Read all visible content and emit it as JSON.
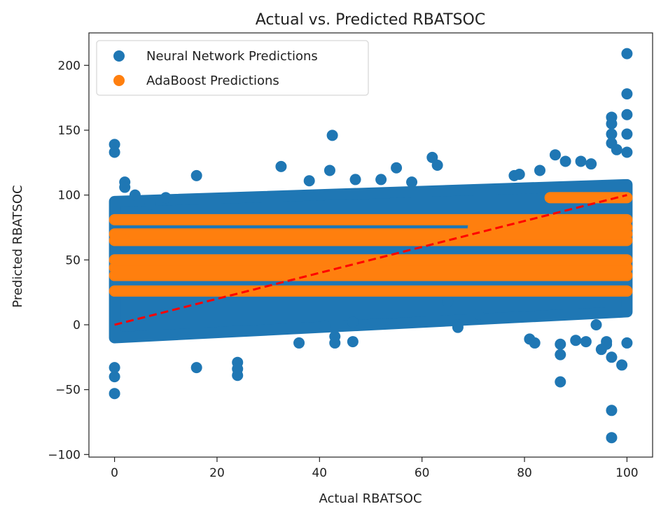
{
  "chart_data": {
    "type": "scatter",
    "title": "Actual vs. Predicted RBATSOC",
    "xlabel": "Actual RBATSOC",
    "ylabel": "Predicted RBATSOC",
    "xlim": [
      -5,
      105
    ],
    "ylim": [
      -102,
      225
    ],
    "xticks": [
      0,
      20,
      40,
      60,
      80,
      100
    ],
    "yticks": [
      -100,
      -50,
      0,
      50,
      100,
      150,
      200
    ],
    "legend_position": "top-left",
    "series": [
      {
        "name": "Neural Network Predictions",
        "color": "#1f77b4",
        "band": {
          "x": [
            0,
            100
          ],
          "y_low_at_x0": -10,
          "y_high_at_x0": 95,
          "y_low_at_x100": 10,
          "y_high_at_x100": 108
        },
        "outliers": [
          [
            0,
            139
          ],
          [
            0,
            133
          ],
          [
            0,
            -53
          ],
          [
            0,
            -40
          ],
          [
            0,
            -33
          ],
          [
            2,
            110
          ],
          [
            2,
            106
          ],
          [
            4,
            100
          ],
          [
            7,
            93
          ],
          [
            10,
            98
          ],
          [
            16,
            115
          ],
          [
            16,
            -33
          ],
          [
            24,
            -29
          ],
          [
            24,
            -34
          ],
          [
            24,
            -39
          ],
          [
            32.5,
            122
          ],
          [
            36,
            -14
          ],
          [
            38,
            111
          ],
          [
            41,
            -1
          ],
          [
            42,
            119
          ],
          [
            42.5,
            146
          ],
          [
            43,
            -9
          ],
          [
            43,
            -14
          ],
          [
            46.5,
            2
          ],
          [
            46.5,
            -13
          ],
          [
            47,
            112
          ],
          [
            52,
            112
          ],
          [
            55,
            121
          ],
          [
            58,
            110
          ],
          [
            62,
            129
          ],
          [
            63,
            123
          ],
          [
            65,
            18
          ],
          [
            67,
            0
          ],
          [
            67,
            -2
          ],
          [
            71,
            8
          ],
          [
            78,
            115
          ],
          [
            79,
            116
          ],
          [
            81,
            -11
          ],
          [
            82,
            -14
          ],
          [
            83,
            119
          ],
          [
            86,
            131
          ],
          [
            87,
            -15
          ],
          [
            87,
            -23
          ],
          [
            87,
            -44
          ],
          [
            88,
            126
          ],
          [
            90,
            -12
          ],
          [
            91,
            126
          ],
          [
            92,
            -13
          ],
          [
            93,
            124
          ],
          [
            94,
            0
          ],
          [
            95,
            -19
          ],
          [
            96,
            -13
          ],
          [
            96,
            -15
          ],
          [
            97,
            160
          ],
          [
            97,
            155
          ],
          [
            97,
            147
          ],
          [
            97,
            140
          ],
          [
            97,
            -66
          ],
          [
            97,
            -87
          ],
          [
            97,
            -25
          ],
          [
            98,
            135
          ],
          [
            99,
            -31
          ],
          [
            100,
            209
          ],
          [
            100,
            178
          ],
          [
            100,
            162
          ],
          [
            100,
            147
          ],
          [
            100,
            133
          ],
          [
            100,
            -14
          ]
        ]
      },
      {
        "name": "AdaBoost Predictions",
        "color": "#ff7f0e",
        "levels": [
          {
            "y": 26,
            "x": [
              0,
              100
            ]
          },
          {
            "y": 38,
            "x": [
              0,
              100
            ]
          },
          {
            "y": 44,
            "x": [
              0,
              100
            ]
          },
          {
            "y": 50,
            "x": [
              0,
              100
            ]
          },
          {
            "y": 65,
            "x": [
              0,
              100
            ]
          },
          {
            "y": 70,
            "x": [
              0,
              100
            ]
          },
          {
            "y": 75,
            "x": [
              70,
              100
            ]
          },
          {
            "y": 81,
            "x": [
              0,
              100
            ]
          },
          {
            "y": 98,
            "x": [
              85,
              100
            ]
          }
        ],
        "extra_points": [
          [
            2,
            69
          ],
          [
            2,
            65
          ]
        ]
      }
    ],
    "reference_line": {
      "x": [
        0,
        100
      ],
      "y": [
        0,
        100
      ],
      "color": "#ff0000",
      "style": "dashed"
    }
  }
}
